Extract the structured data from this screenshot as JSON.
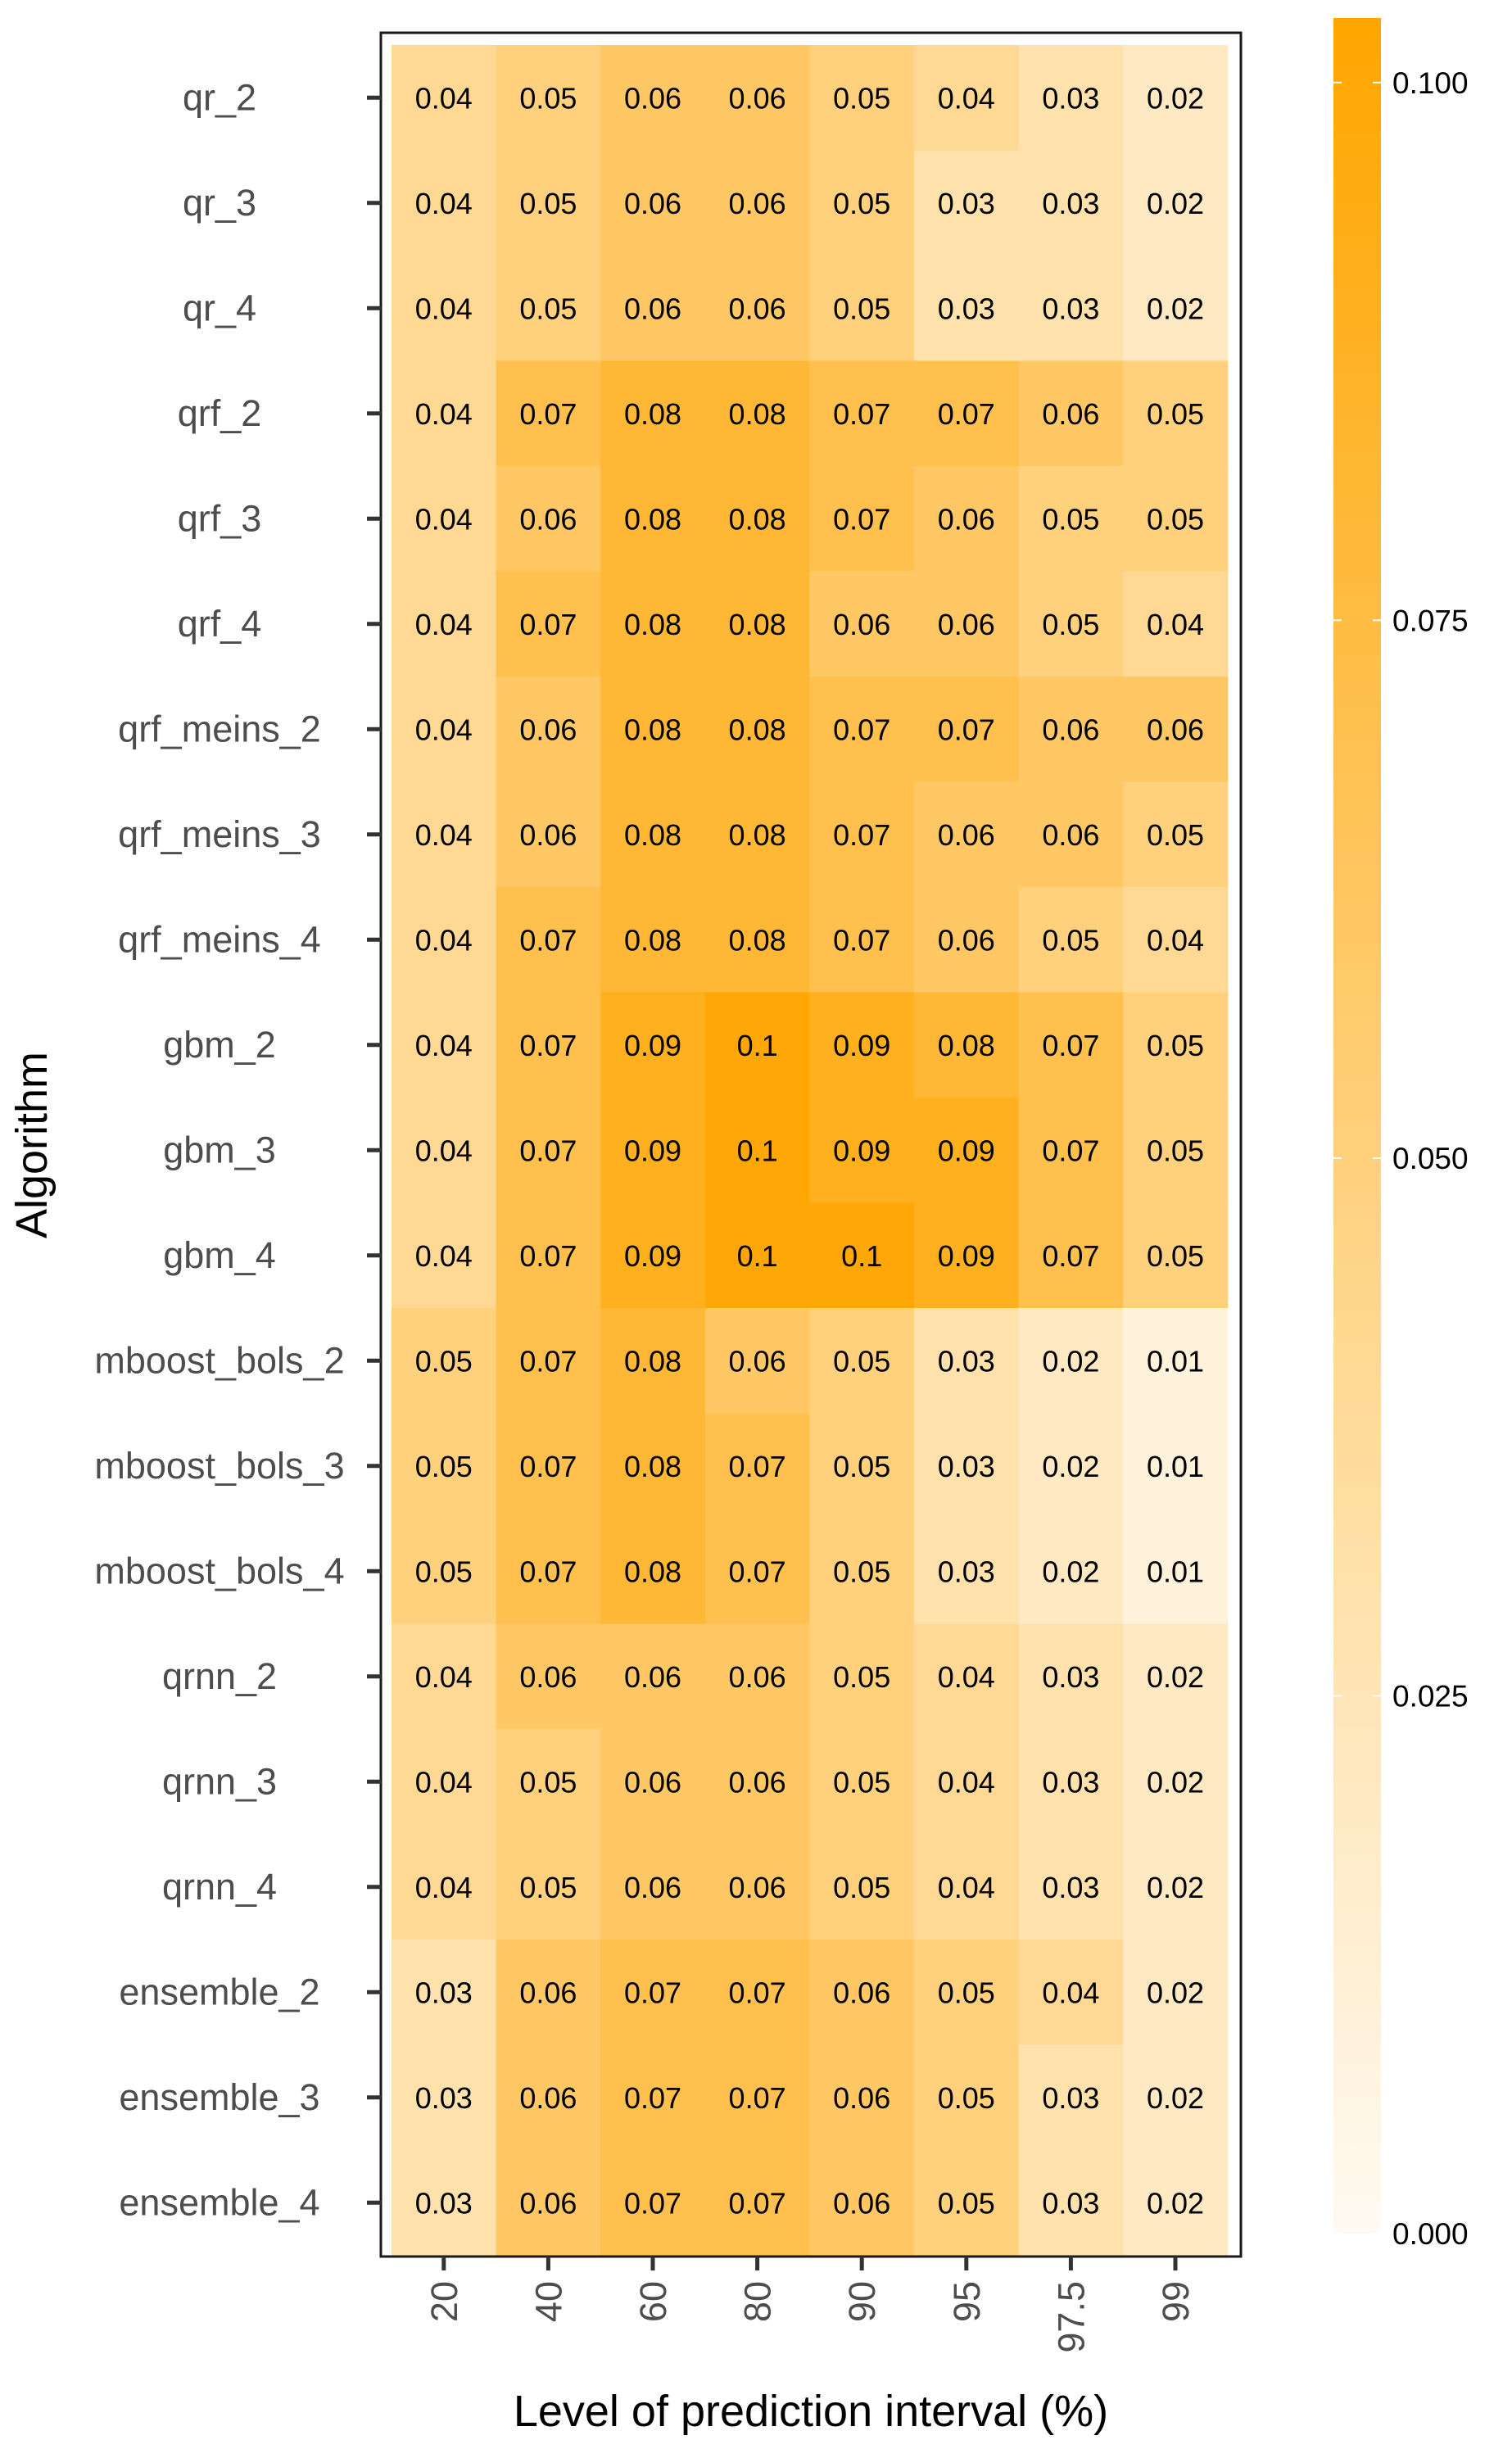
{
  "chart_data": {
    "type": "heatmap",
    "xlabel": "Level of prediction interval (%)",
    "ylabel": "Algorithm",
    "x": [
      "20",
      "40",
      "60",
      "80",
      "90",
      "95",
      "97.5",
      "99"
    ],
    "y": [
      "qr_2",
      "qr_3",
      "qr_4",
      "qrf_2",
      "qrf_3",
      "qrf_4",
      "qrf_meins_2",
      "qrf_meins_3",
      "qrf_meins_4",
      "gbm_2",
      "gbm_3",
      "gbm_4",
      "mboost_bols_2",
      "mboost_bols_3",
      "mboost_bols_4",
      "qrnn_2",
      "qrnn_3",
      "qrnn_4",
      "ensemble_2",
      "ensemble_3",
      "ensemble_4"
    ],
    "values": [
      [
        0.04,
        0.05,
        0.06,
        0.06,
        0.05,
        0.04,
        0.03,
        0.02
      ],
      [
        0.04,
        0.05,
        0.06,
        0.06,
        0.05,
        0.03,
        0.03,
        0.02
      ],
      [
        0.04,
        0.05,
        0.06,
        0.06,
        0.05,
        0.03,
        0.03,
        0.02
      ],
      [
        0.04,
        0.07,
        0.08,
        0.08,
        0.07,
        0.07,
        0.06,
        0.05
      ],
      [
        0.04,
        0.06,
        0.08,
        0.08,
        0.07,
        0.06,
        0.05,
        0.05
      ],
      [
        0.04,
        0.07,
        0.08,
        0.08,
        0.06,
        0.06,
        0.05,
        0.04
      ],
      [
        0.04,
        0.06,
        0.08,
        0.08,
        0.07,
        0.07,
        0.06,
        0.06
      ],
      [
        0.04,
        0.06,
        0.08,
        0.08,
        0.07,
        0.06,
        0.06,
        0.05
      ],
      [
        0.04,
        0.07,
        0.08,
        0.08,
        0.07,
        0.06,
        0.05,
        0.04
      ],
      [
        0.04,
        0.07,
        0.09,
        0.1,
        0.09,
        0.08,
        0.07,
        0.05
      ],
      [
        0.04,
        0.07,
        0.09,
        0.1,
        0.09,
        0.09,
        0.07,
        0.05
      ],
      [
        0.04,
        0.07,
        0.09,
        0.1,
        0.1,
        0.09,
        0.07,
        0.05
      ],
      [
        0.05,
        0.07,
        0.08,
        0.06,
        0.05,
        0.03,
        0.02,
        0.01
      ],
      [
        0.05,
        0.07,
        0.08,
        0.07,
        0.05,
        0.03,
        0.02,
        0.01
      ],
      [
        0.05,
        0.07,
        0.08,
        0.07,
        0.05,
        0.03,
        0.02,
        0.01
      ],
      [
        0.04,
        0.06,
        0.06,
        0.06,
        0.05,
        0.04,
        0.03,
        0.02
      ],
      [
        0.04,
        0.05,
        0.06,
        0.06,
        0.05,
        0.04,
        0.03,
        0.02
      ],
      [
        0.04,
        0.05,
        0.06,
        0.06,
        0.05,
        0.04,
        0.03,
        0.02
      ],
      [
        0.03,
        0.06,
        0.07,
        0.07,
        0.06,
        0.05,
        0.04,
        0.02
      ],
      [
        0.03,
        0.06,
        0.07,
        0.07,
        0.06,
        0.05,
        0.03,
        0.02
      ],
      [
        0.03,
        0.06,
        0.07,
        0.07,
        0.06,
        0.05,
        0.03,
        0.02
      ]
    ],
    "cell_labels": [
      [
        "0.04",
        "0.05",
        "0.06",
        "0.06",
        "0.05",
        "0.04",
        "0.03",
        "0.02"
      ],
      [
        "0.04",
        "0.05",
        "0.06",
        "0.06",
        "0.05",
        "0.03",
        "0.03",
        "0.02"
      ],
      [
        "0.04",
        "0.05",
        "0.06",
        "0.06",
        "0.05",
        "0.03",
        "0.03",
        "0.02"
      ],
      [
        "0.04",
        "0.07",
        "0.08",
        "0.08",
        "0.07",
        "0.07",
        "0.06",
        "0.05"
      ],
      [
        "0.04",
        "0.06",
        "0.08",
        "0.08",
        "0.07",
        "0.06",
        "0.05",
        "0.05"
      ],
      [
        "0.04",
        "0.07",
        "0.08",
        "0.08",
        "0.06",
        "0.06",
        "0.05",
        "0.04"
      ],
      [
        "0.04",
        "0.06",
        "0.08",
        "0.08",
        "0.07",
        "0.07",
        "0.06",
        "0.06"
      ],
      [
        "0.04",
        "0.06",
        "0.08",
        "0.08",
        "0.07",
        "0.06",
        "0.06",
        "0.05"
      ],
      [
        "0.04",
        "0.07",
        "0.08",
        "0.08",
        "0.07",
        "0.06",
        "0.05",
        "0.04"
      ],
      [
        "0.04",
        "0.07",
        "0.09",
        "0.1",
        "0.09",
        "0.08",
        "0.07",
        "0.05"
      ],
      [
        "0.04",
        "0.07",
        "0.09",
        "0.1",
        "0.09",
        "0.09",
        "0.07",
        "0.05"
      ],
      [
        "0.04",
        "0.07",
        "0.09",
        "0.1",
        "0.1",
        "0.09",
        "0.07",
        "0.05"
      ],
      [
        "0.05",
        "0.07",
        "0.08",
        "0.06",
        "0.05",
        "0.03",
        "0.02",
        "0.01"
      ],
      [
        "0.05",
        "0.07",
        "0.08",
        "0.07",
        "0.05",
        "0.03",
        "0.02",
        "0.01"
      ],
      [
        "0.05",
        "0.07",
        "0.08",
        "0.07",
        "0.05",
        "0.03",
        "0.02",
        "0.01"
      ],
      [
        "0.04",
        "0.06",
        "0.06",
        "0.06",
        "0.05",
        "0.04",
        "0.03",
        "0.02"
      ],
      [
        "0.04",
        "0.05",
        "0.06",
        "0.06",
        "0.05",
        "0.04",
        "0.03",
        "0.02"
      ],
      [
        "0.04",
        "0.05",
        "0.06",
        "0.06",
        "0.05",
        "0.04",
        "0.03",
        "0.02"
      ],
      [
        "0.03",
        "0.06",
        "0.07",
        "0.07",
        "0.06",
        "0.05",
        "0.04",
        "0.02"
      ],
      [
        "0.03",
        "0.06",
        "0.07",
        "0.07",
        "0.06",
        "0.05",
        "0.03",
        "0.02"
      ],
      [
        "0.03",
        "0.06",
        "0.07",
        "0.07",
        "0.06",
        "0.05",
        "0.03",
        "0.02"
      ]
    ],
    "colorbar": {
      "min": 0.0,
      "max": 0.103,
      "ticks": [
        0.0,
        0.025,
        0.05,
        0.075,
        0.1
      ],
      "tick_labels": [
        "0.000",
        "0.025",
        "0.050",
        "0.075",
        "0.100"
      ],
      "low_color": "#fffaf2",
      "high_color": "#ffa500",
      "placement": "right"
    },
    "grid": false,
    "x_tick_rotation": "vertical"
  }
}
